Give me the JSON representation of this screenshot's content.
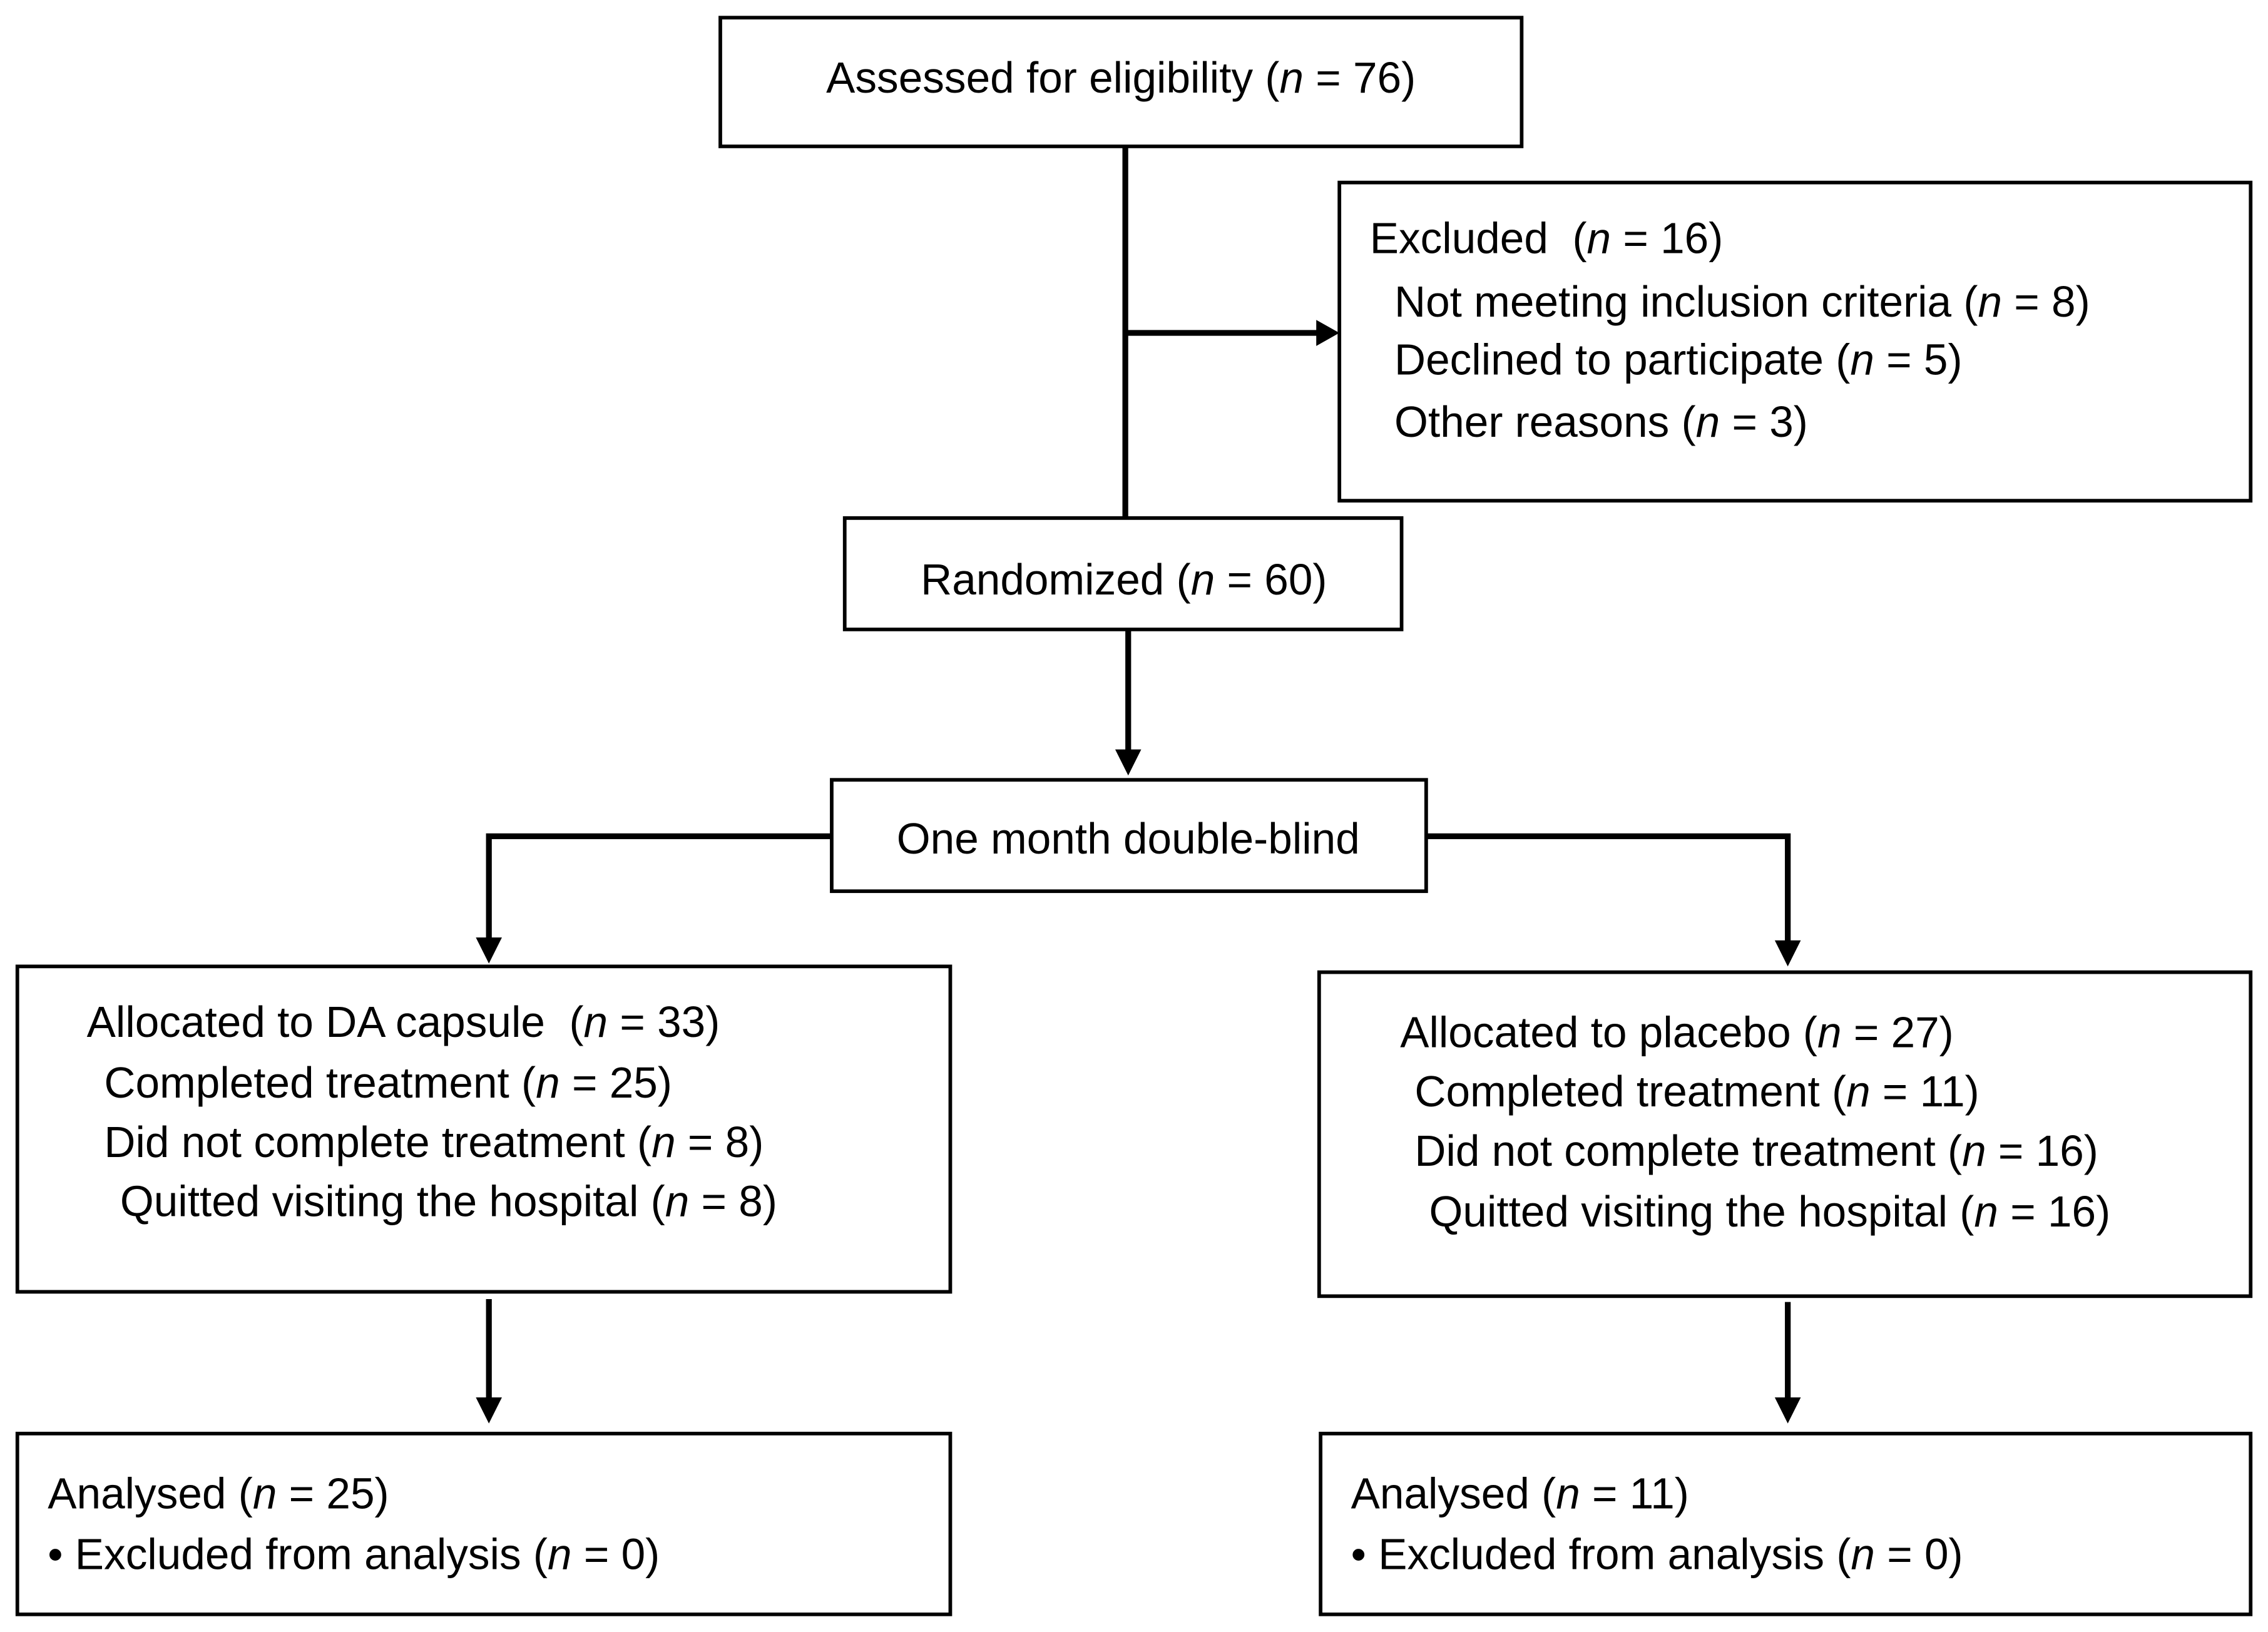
{
  "nodes": [
    {
      "lines": [
        "Assessed for eligibility (n = 76)"
      ]
    },
    {
      "lines": [
        "Excluded  (n = 16)",
        "Not meeting inclusion criteria (n = 8)",
        "Declined to participate (n = 5)",
        "Other reasons (n = 3)"
      ]
    },
    {
      "lines": [
        "Randomized (n = 60)"
      ]
    },
    {
      "lines": [
        "One month double-blind"
      ]
    },
    {
      "lines": [
        "Allocated to DA capsule  (n = 33)",
        "Completed treatment (n = 25)",
        "Did not complete treatment (n = 8)",
        "Quitted visiting the hospital (n = 8)"
      ]
    },
    {
      "lines": [
        "Allocated to placebo (n = 27)",
        "Completed treatment (n = 11)",
        "Did not complete treatment (n = 16)",
        "Quitted visiting the hospital (n = 16)"
      ]
    },
    {
      "lines": [
        "Analysed (n = 25)",
        "• Excluded from analysis (n = 0)"
      ]
    },
    {
      "lines": [
        "Analysed (n = 11)",
        "• Excluded from analysis (n = 0)"
      ]
    }
  ]
}
